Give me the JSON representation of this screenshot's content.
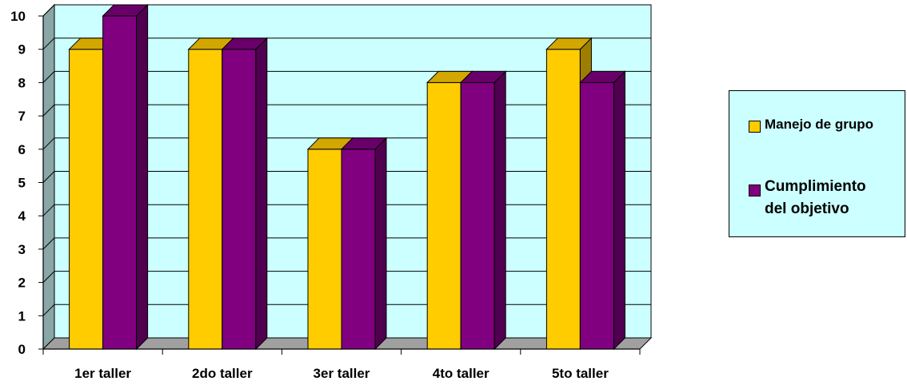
{
  "chart_data": {
    "type": "bar",
    "categories": [
      "1er taller",
      "2do taller",
      "3er taller",
      "4to taller",
      "5to taller"
    ],
    "series": [
      {
        "name": "Manejo de grupo",
        "values": [
          9,
          9,
          6,
          8,
          9
        ],
        "color": "#ffcc00"
      },
      {
        "name": "Cumplimiento del objetivo",
        "values": [
          10,
          9,
          6,
          8,
          8
        ],
        "color": "#800080"
      }
    ],
    "series_corrected": [],
    "ylim": [
      0,
      10
    ],
    "yticks": [
      "0",
      "1",
      "2",
      "3",
      "4",
      "5",
      "6",
      "7",
      "8",
      "9",
      "10"
    ],
    "grid": true,
    "legend_position": "right",
    "plot_background": "#ccffff",
    "wall_color": "#8aa6a6",
    "floor_color": "#a0a0a0"
  }
}
